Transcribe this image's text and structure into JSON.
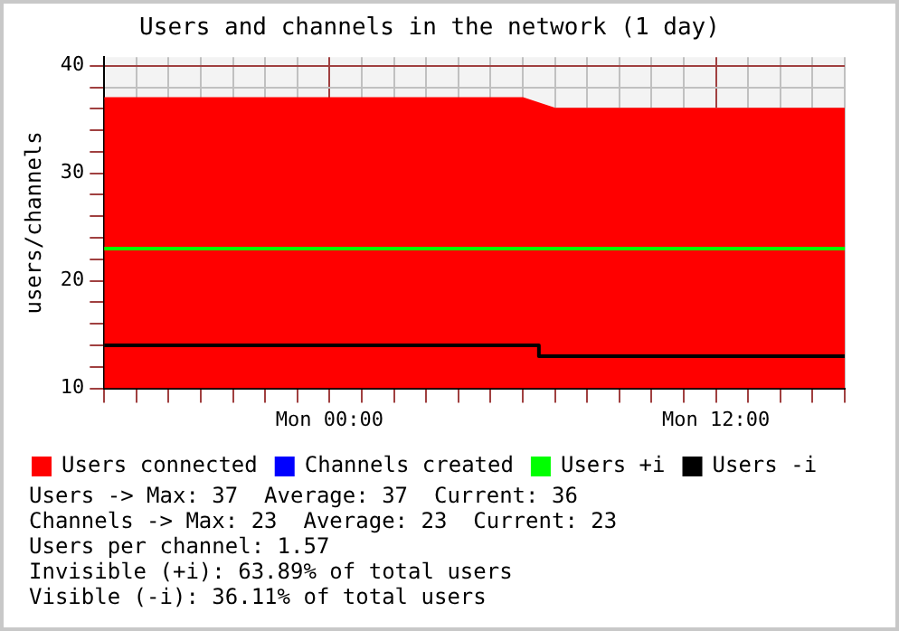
{
  "chart_data": {
    "type": "line",
    "title": "Users and channels in the network (1 day)",
    "ylabel": "users/channels",
    "categories": [
      null,
      null,
      null,
      null,
      null,
      null,
      null,
      "Mon 00:00",
      null,
      null,
      null,
      null,
      null,
      null,
      null,
      null,
      null,
      null,
      null,
      "Mon 12:00",
      null,
      null,
      null,
      null
    ],
    "ylim": [
      10,
      40.8
    ],
    "yticks": [
      10,
      {
        "value": 12,
        "label": null
      },
      {
        "value": 14,
        "label": null
      },
      {
        "value": 16,
        "label": null
      },
      {
        "value": 18,
        "label": null
      },
      20,
      {
        "value": 22,
        "label": null
      },
      {
        "value": 24,
        "label": null
      },
      {
        "value": 26,
        "label": null
      },
      {
        "value": 28,
        "label": null
      },
      30,
      {
        "value": 32,
        "label": null
      },
      {
        "value": 34,
        "label": null
      },
      {
        "value": 36,
        "label": null
      },
      {
        "value": 38,
        "label": null
      },
      40
    ],
    "grid": true,
    "legend": "bottom",
    "marker": "none",
    "series": [
      {
        "name": "Users connected",
        "type": "area",
        "color": "#ff0000",
        "values": [
          37,
          37,
          37,
          37,
          37,
          37,
          37,
          37,
          37,
          37,
          37,
          37,
          37,
          37,
          36,
          36,
          36,
          36,
          36,
          36,
          36,
          36,
          36,
          36
        ]
      },
      {
        "name": "Channels created",
        "color": "#0000ff",
        "values": [
          null,
          null,
          null,
          null,
          null,
          null,
          null,
          null,
          null,
          null,
          null,
          null,
          null,
          null,
          null,
          null,
          null,
          null,
          null,
          null,
          null,
          null,
          null,
          null
        ]
      },
      {
        "name": "Users +i",
        "color": "#00ff00",
        "values": [
          23,
          23,
          23,
          23,
          23,
          23,
          23,
          23,
          23,
          23,
          23,
          23,
          23,
          23,
          23,
          23,
          23,
          23,
          23,
          23,
          23,
          23,
          23,
          23
        ]
      },
      {
        "name": "Users -i",
        "type": "step",
        "color": "#000000",
        "values": [
          14,
          14,
          14,
          14,
          14,
          14,
          14,
          14,
          14,
          14,
          14,
          14,
          14,
          14,
          13,
          13,
          13,
          13,
          13,
          13,
          13,
          13,
          13,
          13
        ]
      }
    ],
    "annotations": [
      "Users -> Max: 37  Average: 37  Current: 36",
      "Channels -> Max: 23  Average: 23  Current: 23",
      "Users per channel: 1.57",
      "Invisible (+i): 63.89% of total users",
      "Visible (-i): 36.11% of total users"
    ]
  }
}
